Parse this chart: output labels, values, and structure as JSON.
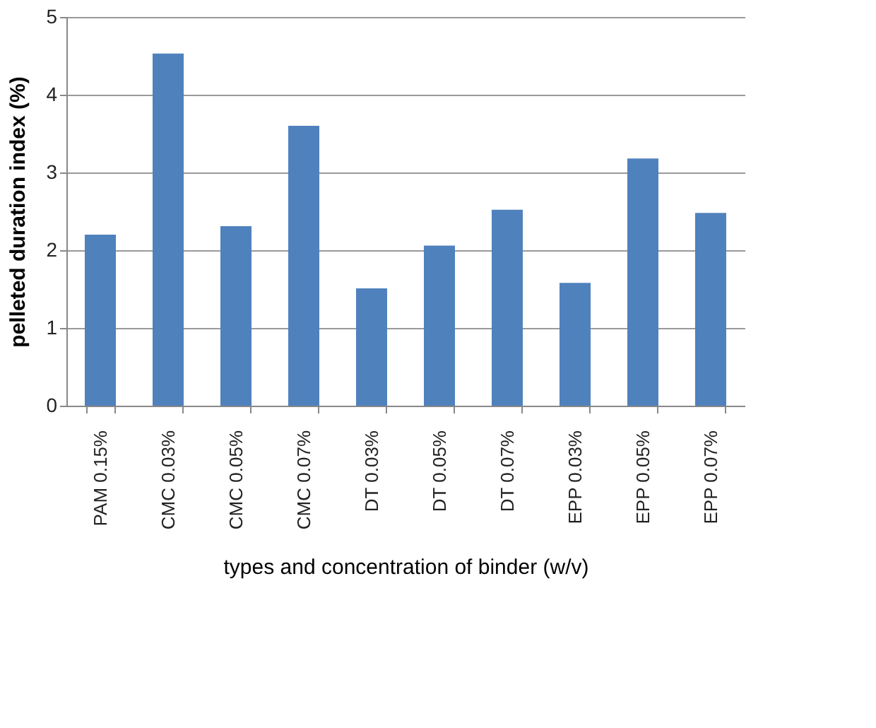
{
  "chart_data": {
    "type": "bar",
    "xlabel": "types and concentration of binder (w/v)",
    "ylabel": "pelleted duration index  (%)",
    "categories": [
      "PAM  0.15%",
      "CMC 0.03%",
      "CMC 0.05%",
      "CMC 0.07%",
      "DT 0.03%",
      "DT 0.05%",
      "DT 0.07%",
      "EPP 0.03%",
      "EPP 0.05%",
      "EPP 0.07%"
    ],
    "values": [
      2.2,
      4.53,
      2.31,
      3.6,
      1.51,
      2.06,
      2.52,
      1.58,
      3.18,
      2.48
    ],
    "color": "#4f81bd",
    "ylim": [
      0,
      5
    ],
    "yticks": [
      0,
      1,
      2,
      3,
      4,
      5
    ],
    "grid": "y"
  }
}
